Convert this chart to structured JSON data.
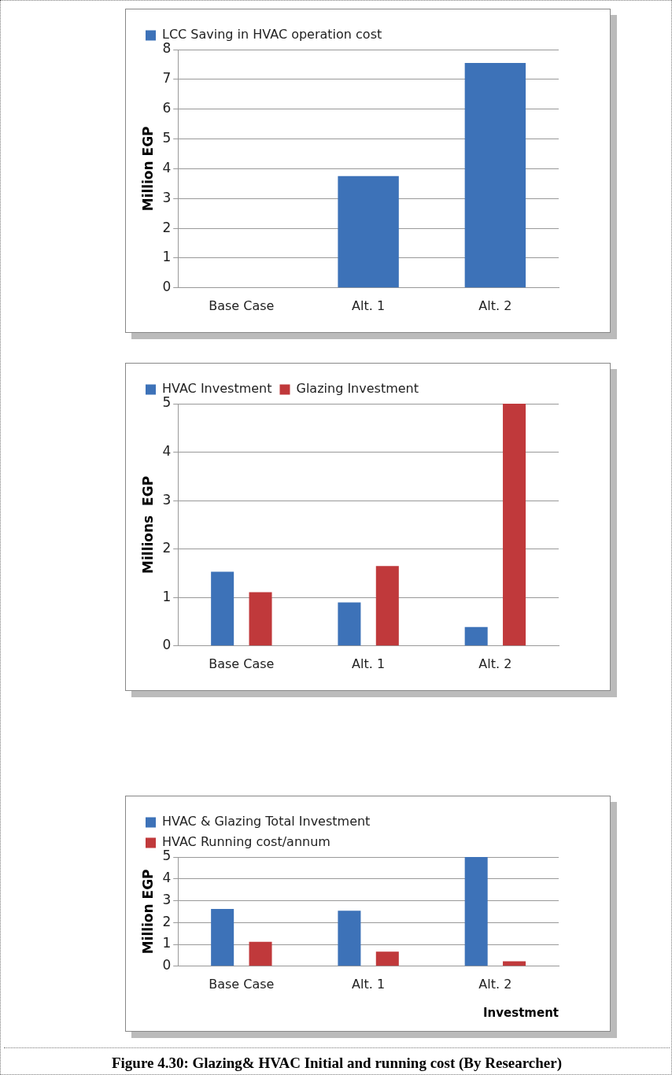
{
  "chart_data": [
    {
      "type": "bar",
      "ylabel": "Million EGP",
      "categories": [
        "Base Case",
        "Alt. 1",
        "Alt. 2"
      ],
      "series": [
        {
          "name": "LCC Saving in HVAC operation cost",
          "color": "#3d72b8",
          "values": [
            0,
            3.75,
            7.55
          ]
        }
      ],
      "ylim": [
        0,
        8
      ],
      "yticks": [
        0,
        1,
        2,
        3,
        4,
        5,
        6,
        7,
        8
      ],
      "grid": "y",
      "legend": "top left"
    },
    {
      "type": "bar",
      "ylabel": "Millions  EGP",
      "categories": [
        "Base Case",
        "Alt. 1",
        "Alt. 2"
      ],
      "series": [
        {
          "name": "HVAC Investment",
          "color": "#3d72b8",
          "values": [
            1.53,
            0.9,
            0.39
          ]
        },
        {
          "name": "Glazing Investment",
          "color": "#c0393b",
          "values": [
            1.11,
            1.65,
            5
          ]
        }
      ],
      "ylim": [
        0,
        5
      ],
      "yticks": [
        0,
        1,
        2,
        3,
        4,
        5
      ],
      "grid": "y",
      "legend": "top left"
    },
    {
      "type": "bar",
      "ylabel": "Million EGP",
      "xlabel": "Investment",
      "categories": [
        "Base Case",
        "Alt. 1",
        "Alt. 2"
      ],
      "series": [
        {
          "name": "HVAC & Glazing Total Investment",
          "color": "#3d72b8",
          "values": [
            2.62,
            2.54,
            5
          ]
        },
        {
          "name": "HVAC Running cost/annum",
          "color": "#c0393b",
          "values": [
            1.12,
            0.67,
            0.23
          ]
        }
      ],
      "ylim": [
        0,
        5
      ],
      "yticks": [
        0,
        1,
        2,
        3,
        4,
        5
      ],
      "grid": "y",
      "legend": "top left",
      "annotations": [
        "Figure 4.30: Glazing& HVAC Initial and running cost (By Researcher)"
      ]
    }
  ]
}
